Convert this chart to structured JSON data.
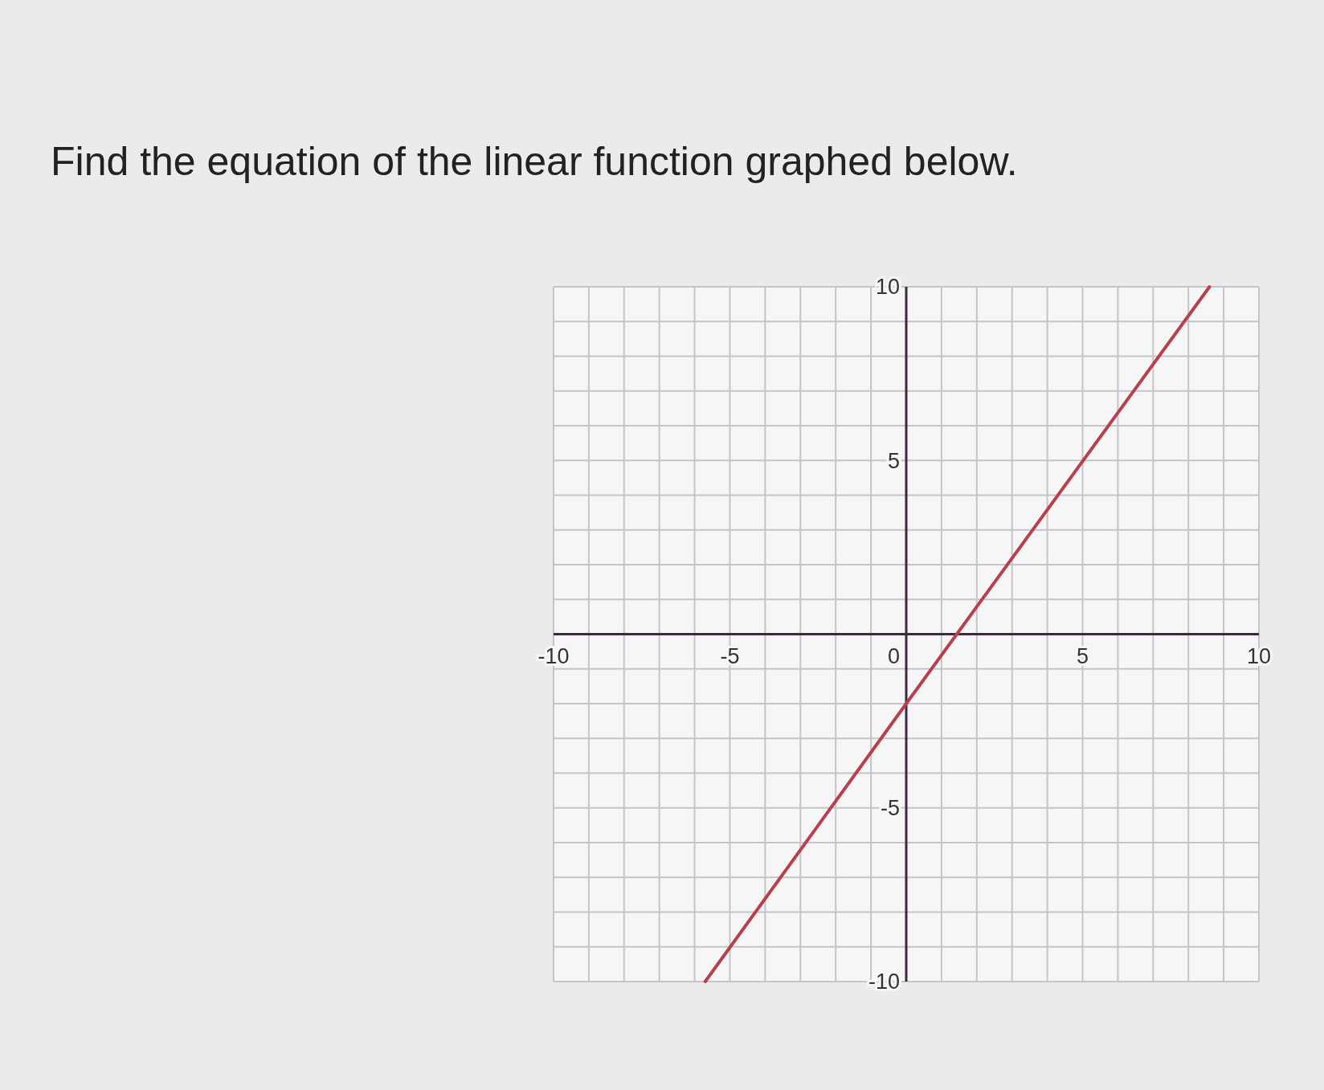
{
  "chart_data": {
    "type": "line",
    "title": "Find the equation of the linear function graphed below.",
    "x": [
      -5.7,
      0,
      8.6
    ],
    "series": [
      {
        "color": "#b8404e",
        "values": [
          -10,
          -2,
          10
        ]
      }
    ],
    "xlim": [
      -10,
      10
    ],
    "ylim": [
      -10,
      10
    ],
    "xticks": [
      -10,
      {
        "value": -9,
        "label": null
      },
      {
        "value": -8,
        "label": null
      },
      {
        "value": -7,
        "label": null
      },
      {
        "value": -6,
        "label": null
      },
      -5,
      {
        "value": -4,
        "label": null
      },
      {
        "value": -3,
        "label": null
      },
      {
        "value": -2,
        "label": null
      },
      {
        "value": -1,
        "label": null
      },
      0,
      {
        "value": 1,
        "label": null
      },
      {
        "value": 2,
        "label": null
      },
      {
        "value": 3,
        "label": null
      },
      {
        "value": 4,
        "label": null
      },
      5,
      {
        "value": 6,
        "label": null
      },
      {
        "value": 7,
        "label": null
      },
      {
        "value": 8,
        "label": null
      },
      {
        "value": 9,
        "label": null
      },
      10
    ],
    "yticks": [
      -10,
      {
        "value": -9,
        "label": null
      },
      {
        "value": -8,
        "label": null
      },
      {
        "value": -7,
        "label": null
      },
      {
        "value": -6,
        "label": null
      },
      -5,
      {
        "value": -4,
        "label": null
      },
      {
        "value": -3,
        "label": null
      },
      {
        "value": -2,
        "label": null
      },
      {
        "value": -1,
        "label": null
      },
      {
        "value": 0,
        "label": null
      },
      {
        "value": 1,
        "label": null
      },
      {
        "value": 2,
        "label": null
      },
      {
        "value": 3,
        "label": null
      },
      {
        "value": 4,
        "label": null
      },
      5,
      {
        "value": 6,
        "label": null
      },
      {
        "value": 7,
        "label": null
      },
      {
        "value": 8,
        "label": null
      },
      {
        "value": 9,
        "label": null
      },
      10
    ],
    "grid": true
  }
}
